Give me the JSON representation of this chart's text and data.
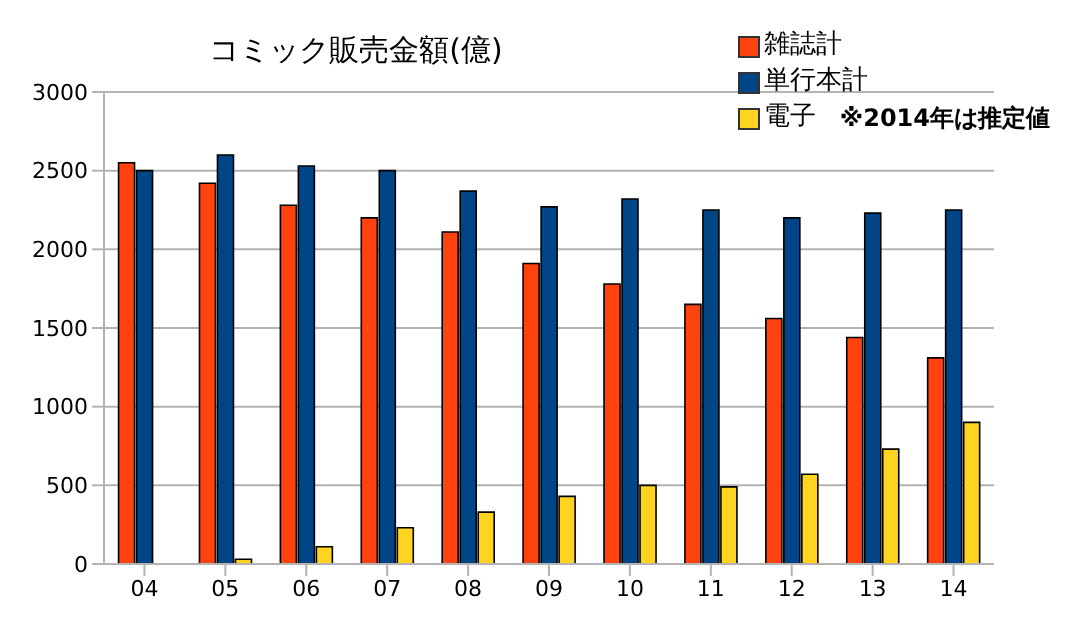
{
  "chart_data": {
    "type": "bar",
    "title": "コミック販売金額(億)",
    "categories": [
      "04",
      "05",
      "06",
      "07",
      "08",
      "09",
      "10",
      "11",
      "12",
      "13",
      "14"
    ],
    "series": [
      {
        "name": "雑誌計",
        "color": "#ff420e",
        "values": [
          2550,
          2420,
          2280,
          2200,
          2110,
          1910,
          1780,
          1650,
          1560,
          1440,
          1310
        ]
      },
      {
        "name": "単行本計",
        "color": "#004586",
        "values": [
          2500,
          2600,
          2530,
          2500,
          2370,
          2270,
          2320,
          2250,
          2200,
          2230,
          2250
        ]
      },
      {
        "name": "電子",
        "color": "#ffd320",
        "values": [
          null,
          30,
          110,
          230,
          330,
          430,
          500,
          490,
          570,
          730,
          900
        ]
      }
    ],
    "annotations": [
      "※2014年は推定値"
    ],
    "ylim": [
      0,
      3000
    ],
    "yticks": [
      0,
      500,
      1000,
      1500,
      2000,
      2500,
      3000
    ],
    "grid": "y",
    "legend": "top right"
  }
}
